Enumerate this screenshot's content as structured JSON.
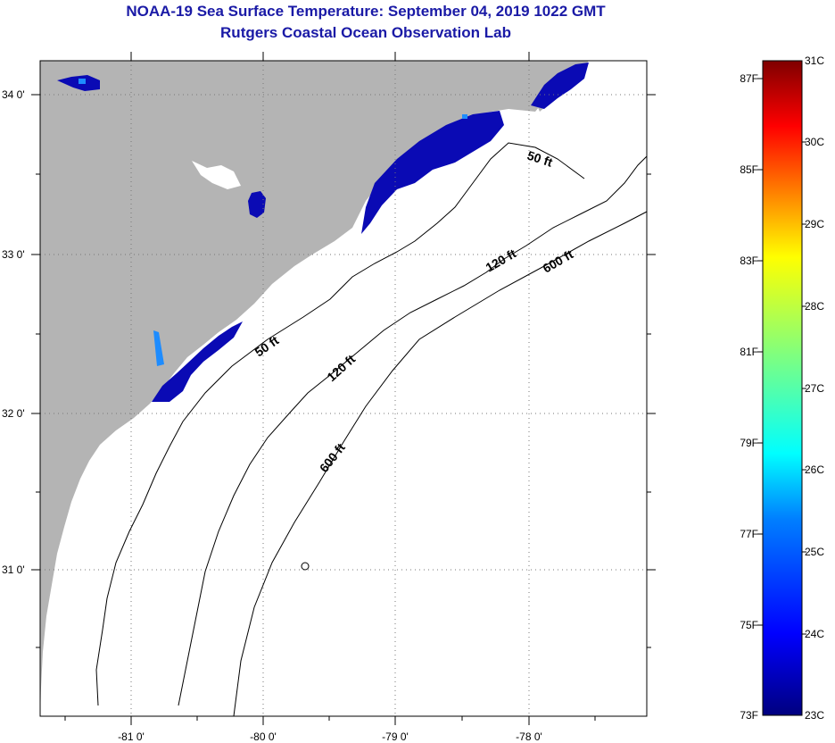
{
  "header": {
    "title_line1": "NOAA-19 Sea Surface Temperature:  September 04, 2019 1022 GMT",
    "title_line2": "Rutgers Coastal Ocean Observation Lab"
  },
  "map": {
    "latitude_labels": [
      "34 0'",
      "33 0'",
      "32 0'",
      "31 0'"
    ],
    "longitude_labels": [
      "-81 0'",
      "-80 0'",
      "-79 0'",
      "-78 0'"
    ],
    "isobath_labels": {
      "ft50_north": "50 ft",
      "ft50_south": "50 ft",
      "ft120_north": "120 ft",
      "ft120_south": "120 ft",
      "ft600_north": "600 ft",
      "ft600_south": "600 ft"
    },
    "colors": {
      "land": "#b4b4b4",
      "ocean_no_data": "#ffffff",
      "sst_cold": "#0a0ab4",
      "sst_dark": "#000080"
    }
  },
  "colorbar": {
    "fahrenheit_labels": [
      "87F",
      "85F",
      "83F",
      "81F",
      "79F",
      "77F",
      "75F",
      "73F"
    ],
    "celsius_labels": [
      "31C",
      "30C",
      "29C",
      "28C",
      "27C",
      "26C",
      "25C",
      "24C",
      "23C"
    ],
    "colors": [
      "#00007f",
      "#0000ff",
      "#007fff",
      "#00ffff",
      "#7fff7f",
      "#ffff00",
      "#ff7f00",
      "#ff0000",
      "#7f0000"
    ]
  }
}
